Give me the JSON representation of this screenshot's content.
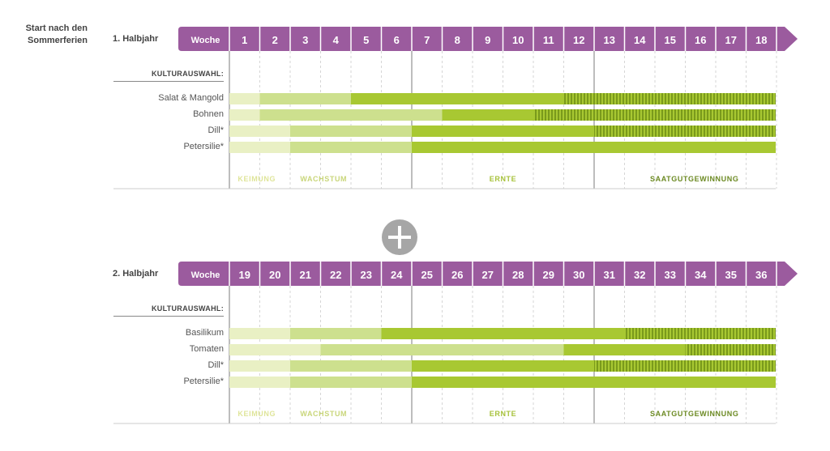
{
  "intro": {
    "line1": "Start nach den",
    "line2": "Sommerferien"
  },
  "legend": {
    "keimung": "KEIMUNG",
    "wachstum": "WACHSTUM",
    "ernte": "ERNTE",
    "saatgut": "SAATGUTGEWINNUNG"
  },
  "colors": {
    "header_purple": "#9b5b9e",
    "keimung": "#e9f0c4",
    "wachstum": "#cde08e",
    "ernte": "#a8c832",
    "saatgut": "#7a9a1c",
    "keimung_text": "#dfe59a",
    "wachstum_text": "#c9d67a",
    "ernte_text": "#a7c23b",
    "saatgut_text": "#6c8a23"
  },
  "chart_data": [
    {
      "type": "gantt",
      "title": "1. Halbjahr",
      "header_label": "Woche",
      "section_label": "KULTURAUSWAHL:",
      "weeks": [
        1,
        2,
        3,
        4,
        5,
        6,
        7,
        8,
        9,
        10,
        11,
        12,
        13,
        14,
        15,
        16,
        17,
        18
      ],
      "crops": [
        {
          "name": "Salat & Mangold",
          "keimung": [
            1,
            1
          ],
          "wachstum": [
            2,
            4
          ],
          "ernte": [
            5,
            18
          ],
          "saatgut": [
            12,
            18
          ]
        },
        {
          "name": "Bohnen",
          "keimung": [
            1,
            1
          ],
          "wachstum": [
            2,
            7
          ],
          "ernte": [
            8,
            18
          ],
          "saatgut": [
            11,
            18
          ]
        },
        {
          "name": "Dill*",
          "keimung": [
            1,
            2
          ],
          "wachstum": [
            3,
            7
          ],
          "ernte": [
            7,
            18
          ],
          "saatgut": [
            13,
            18
          ]
        },
        {
          "name": "Petersilie*",
          "keimung": [
            1,
            2
          ],
          "wachstum": [
            3,
            6
          ],
          "ernte": [
            7,
            18
          ]
        }
      ]
    },
    {
      "type": "gantt",
      "title": "2. Halbjahr",
      "header_label": "Woche",
      "section_label": "KULTURAUSWAHL:",
      "weeks": [
        19,
        20,
        21,
        22,
        23,
        24,
        25,
        26,
        27,
        28,
        29,
        30,
        31,
        32,
        33,
        34,
        35,
        36
      ],
      "crops": [
        {
          "name": "Basilikum",
          "keimung": [
            19,
            20
          ],
          "wachstum": [
            21,
            23
          ],
          "ernte": [
            24,
            36
          ],
          "saatgut": [
            32,
            36
          ]
        },
        {
          "name": "Tomaten",
          "keimung": [
            19,
            21
          ],
          "wachstum": [
            22,
            29
          ],
          "ernte": [
            30,
            36
          ],
          "saatgut": [
            34,
            36
          ]
        },
        {
          "name": "Dill*",
          "keimung": [
            19,
            20
          ],
          "wachstum": [
            21,
            25
          ],
          "ernte": [
            25,
            36
          ],
          "saatgut": [
            31,
            36
          ]
        },
        {
          "name": "Petersilie*",
          "keimung": [
            19,
            20
          ],
          "wachstum": [
            21,
            24
          ],
          "ernte": [
            25,
            36
          ]
        }
      ]
    }
  ]
}
